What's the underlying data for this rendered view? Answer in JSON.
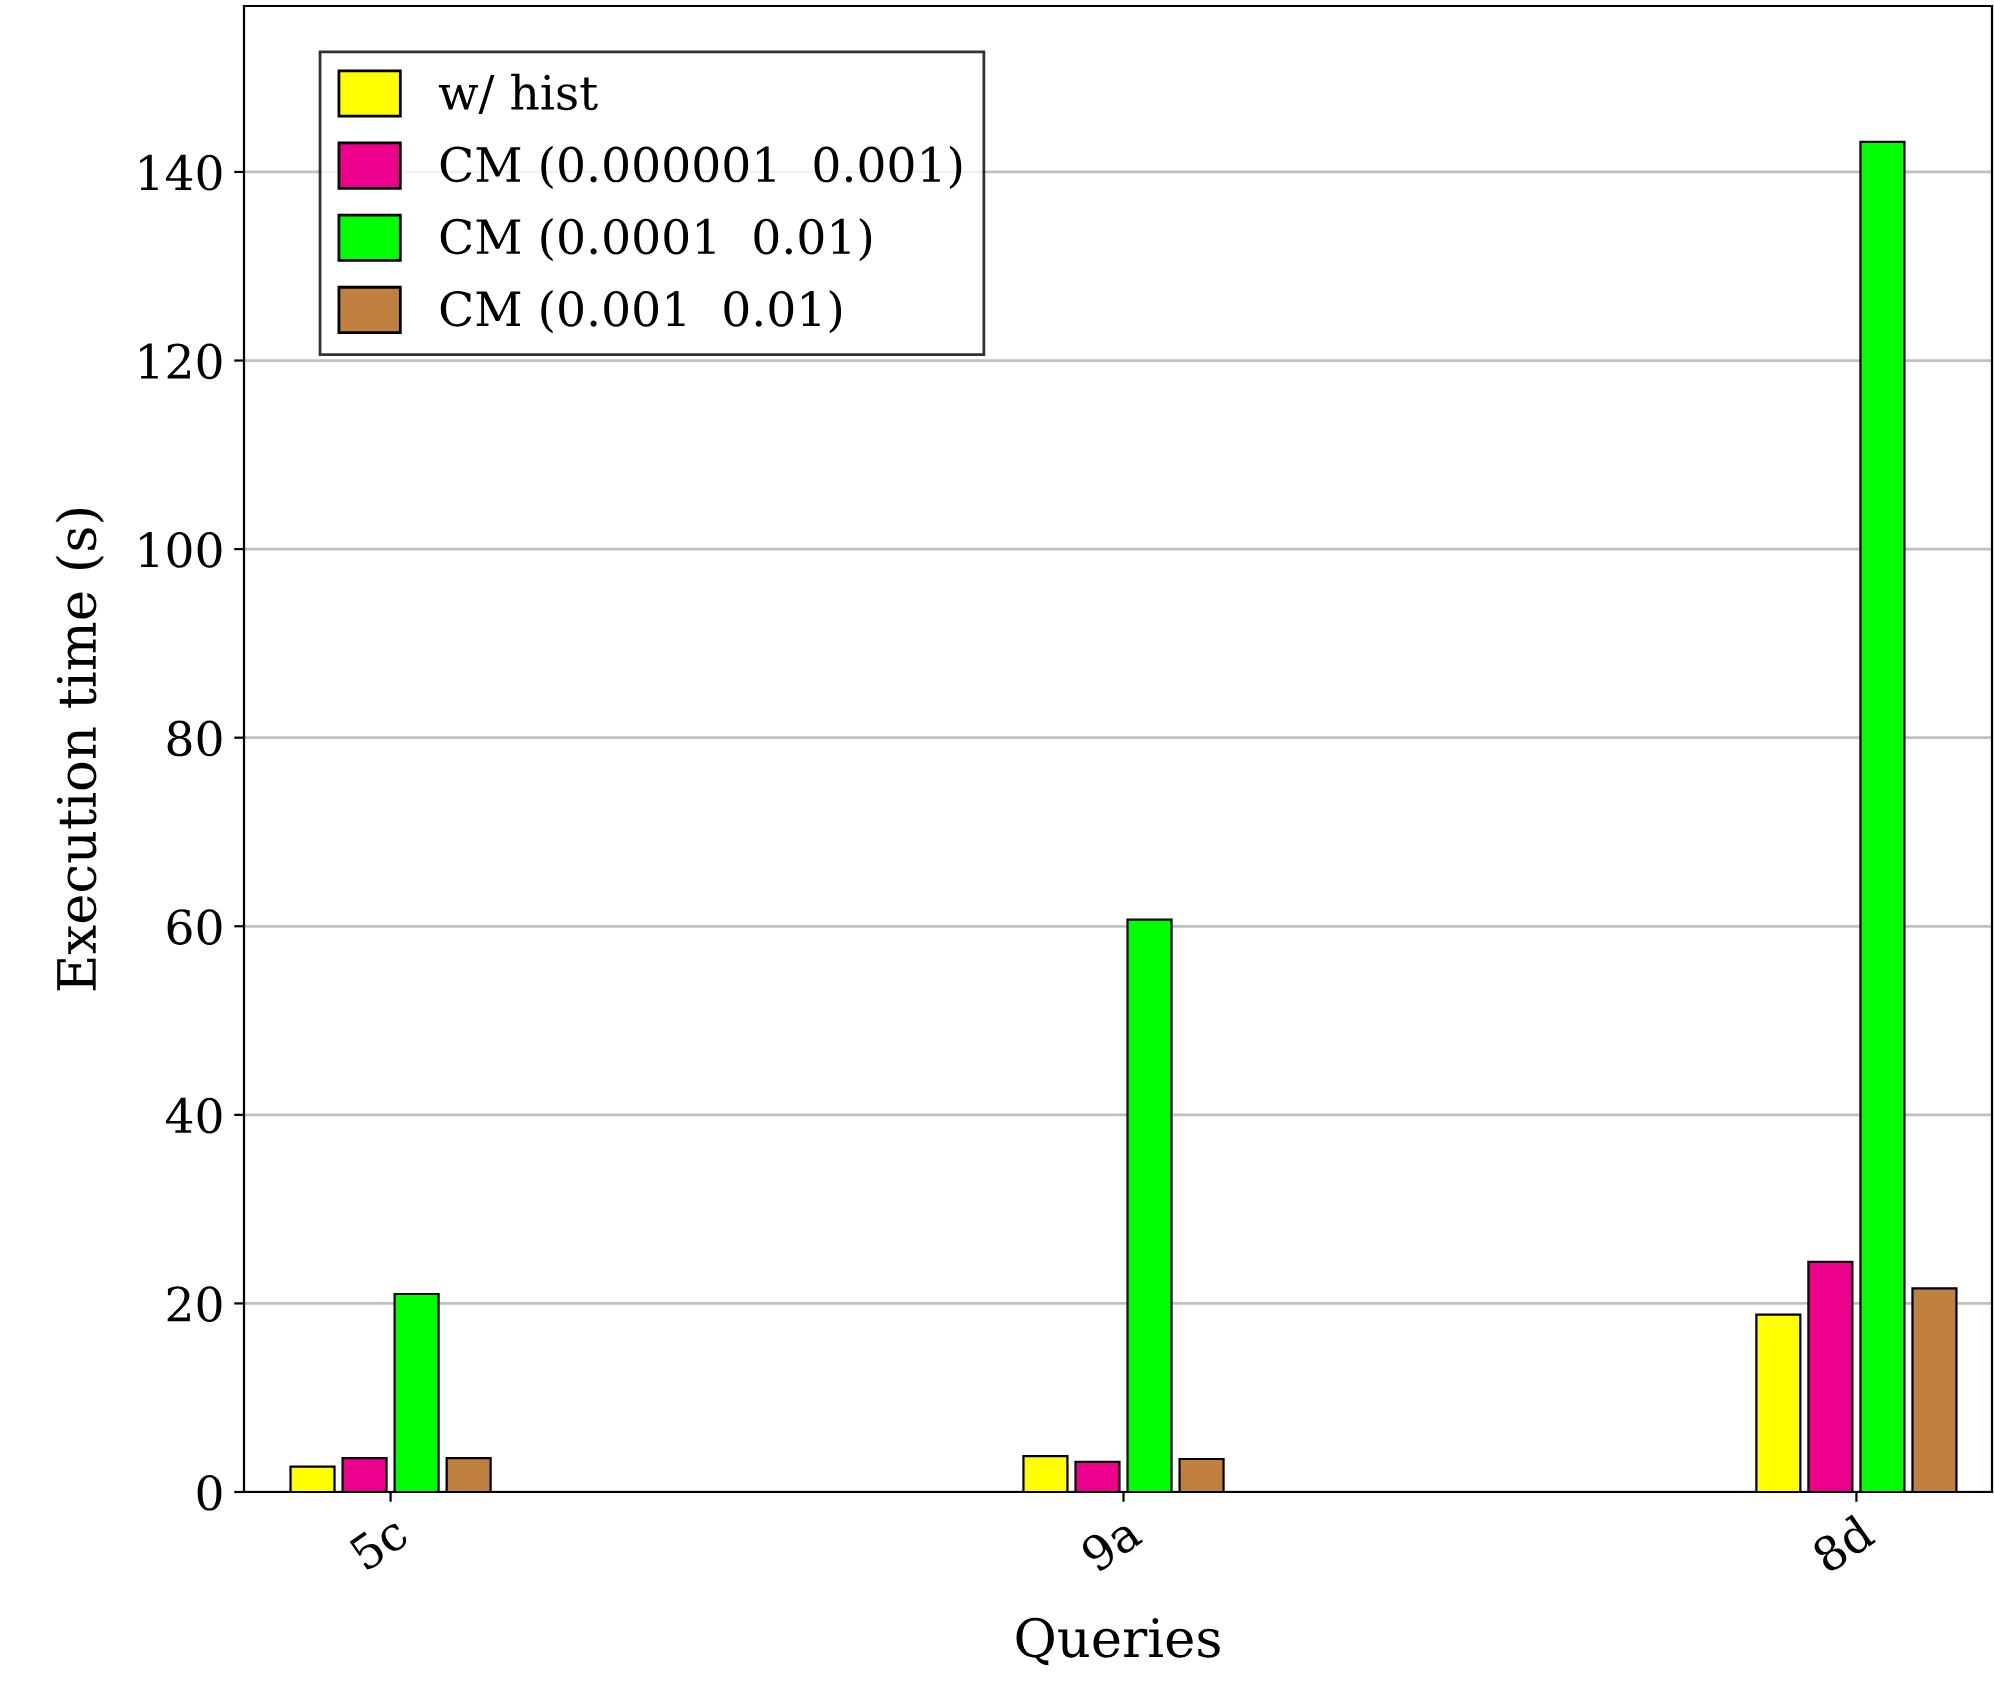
{
  "chart_data": {
    "type": "bar",
    "xlabel": "Queries",
    "ylabel": "Execution time (s)",
    "categories": [
      "5c",
      "9a",
      "8d"
    ],
    "series": [
      {
        "name": "w/ hist",
        "color": "#ffff00",
        "values": [
          2.7,
          3.8,
          18.8
        ]
      },
      {
        "name": "CM (0.000001  0.001)",
        "color": "#ec008c",
        "values": [
          3.6,
          3.2,
          24.4
        ]
      },
      {
        "name": "CM (0.0001  0.01)",
        "color": "#00ff00",
        "values": [
          21.0,
          60.7,
          143.2
        ]
      },
      {
        "name": "CM (0.001  0.01)",
        "color": "#bf8040",
        "values": [
          3.6,
          3.5,
          21.6
        ]
      }
    ],
    "ylim": [
      0,
      157.6
    ],
    "yticks": [
      0,
      20,
      40,
      60,
      80,
      100,
      120,
      140
    ],
    "grid": "y",
    "legend": "top left"
  }
}
